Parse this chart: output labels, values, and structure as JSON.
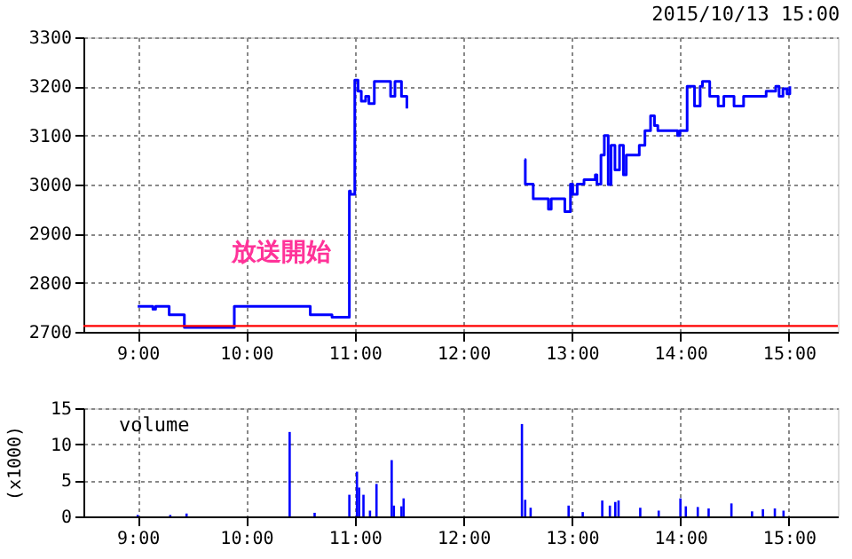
{
  "chart_data": [
    {
      "type": "step",
      "xlim": [
        8.5,
        15.45
      ],
      "ylim": [
        2700,
        3300
      ],
      "xticks": [
        {
          "value": 9,
          "label": "9:00"
        },
        {
          "value": 10,
          "label": "10:00"
        },
        {
          "value": 11,
          "label": "11:00"
        },
        {
          "value": 12,
          "label": "12:00"
        },
        {
          "value": 13,
          "label": "13:00"
        },
        {
          "value": 14,
          "label": "14:00"
        },
        {
          "value": 15,
          "label": "15:00"
        }
      ],
      "yticks": [
        2700,
        2800,
        2900,
        3000,
        3100,
        3200,
        3300
      ],
      "grid": true,
      "legend": false,
      "x": [
        9.0,
        9.14,
        9.165,
        9.29,
        9.43,
        9.89,
        10.59,
        10.79,
        10.95,
        10.96,
        11.0,
        11.03,
        11.06,
        11.1,
        11.13,
        11.18,
        11.22,
        11.33,
        11.37,
        11.43,
        11.46,
        11.48,
        12.0,
        12.566,
        12.571,
        12.644,
        12.784,
        12.81,
        12.935,
        12.987,
        13.008,
        13.049,
        13.112,
        13.216,
        13.231,
        13.268,
        13.299,
        13.335,
        13.361,
        13.397,
        13.439,
        13.475,
        13.501,
        13.621,
        13.673,
        13.725,
        13.761,
        13.792,
        13.974,
        13.995,
        14.01,
        14.062,
        14.13,
        14.182,
        14.203,
        14.27,
        14.348,
        14.4,
        14.494,
        14.582,
        14.79,
        14.878,
        14.909,
        14.945,
        14.982,
        15.008
      ],
      "series": [
        {
          "color": "#0000ff",
          "values": [
            2752,
            2746,
            2752,
            2735,
            2709,
            2752,
            2735,
            2730,
            2987,
            2980,
            3213,
            3190,
            3170,
            3180,
            3165,
            3210,
            3210,
            3180,
            3210,
            3180,
            3180,
            3155,
            null,
            3051,
            3001,
            2971,
            2950,
            2971,
            2945,
            3001,
            2980,
            3001,
            3010,
            3020,
            3001,
            3060,
            3100,
            3000,
            3080,
            3030,
            3080,
            3020,
            3060,
            3080,
            3110,
            3140,
            3120,
            3110,
            3100,
            3110,
            3110,
            3200,
            3160,
            3200,
            3210,
            3180,
            3160,
            3180,
            3160,
            3180,
            3190,
            3200,
            3180,
            3195,
            3185,
            3200
          ]
        }
      ],
      "ref_lines": [
        {
          "axis": "y",
          "value": 2712,
          "color": "#ff0000"
        }
      ],
      "annotations": [
        "2015/10/13 15:00",
        {
          "text": "放送開始",
          "x": 10.88,
          "y": 2760
        }
      ]
    },
    {
      "type": "bar",
      "xlim": [
        8.5,
        15.45
      ],
      "ylim": [
        0,
        15
      ],
      "xticks": [
        {
          "value": 9,
          "label": "9:00"
        },
        {
          "value": 10,
          "label": "10:00"
        },
        {
          "value": 11,
          "label": "11:00"
        },
        {
          "value": 12,
          "label": "12:00"
        },
        {
          "value": 13,
          "label": "13:00"
        },
        {
          "value": 14,
          "label": "14:00"
        },
        {
          "value": 15,
          "label": "15:00"
        }
      ],
      "yticks": [
        0,
        5,
        10,
        15
      ],
      "grid": true,
      "ylabel": "(x1000)",
      "legend": "top left",
      "x": [
        9.0,
        9.3,
        9.45,
        10.4,
        10.63,
        10.95,
        11.02,
        11.04,
        11.08,
        11.14,
        11.2,
        11.34,
        11.36,
        11.43,
        11.45,
        12.54,
        12.57,
        12.62,
        12.97,
        13.1,
        13.28,
        13.35,
        13.4,
        13.43,
        13.63,
        13.8,
        14.0,
        14.05,
        14.16,
        14.26,
        14.47,
        14.66,
        14.76,
        14.87,
        14.95
      ],
      "series": [
        {
          "name": "volume",
          "color": "#0000ff",
          "values": [
            0.2,
            0.2,
            0.4,
            11.7,
            0.5,
            3,
            6.2,
            4,
            3,
            0.8,
            4.5,
            7.8,
            1.5,
            1.4,
            2.5,
            12.8,
            2.3,
            1.2,
            1.5,
            0.6,
            2.2,
            1.5,
            2,
            2.2,
            1.2,
            0.8,
            2.5,
            1.4,
            1.3,
            1.1,
            1.8,
            0.7,
            1,
            1.1,
            0.8
          ]
        }
      ]
    }
  ]
}
